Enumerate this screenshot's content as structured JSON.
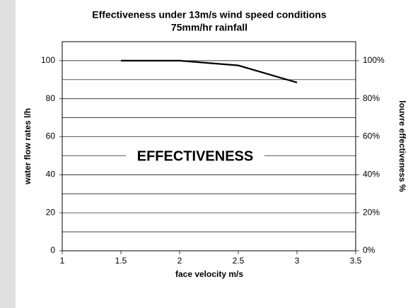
{
  "chart_data": {
    "type": "line",
    "title": "Effectiveness under 13m/s wind speed conditions",
    "subtitle": "75mm/hr rainfall",
    "x_label": "face velocity m/s",
    "y_label": "water flow rates l/h",
    "y2_label": "louvre effectiveness %",
    "annotation": "EFFECTIVENESS",
    "x": [
      1.5,
      2,
      2.5,
      3
    ],
    "series": [
      {
        "name": "effectiveness",
        "color": "#000000",
        "values": [
          100,
          100,
          97.5,
          88.5
        ]
      }
    ],
    "xlim": [
      1,
      3.5
    ],
    "xticks": [
      1,
      1.5,
      2,
      2.5,
      3,
      3.5
    ],
    "ylim": [
      0,
      110
    ],
    "yticks": [
      0,
      20,
      40,
      60,
      80,
      100
    ],
    "y_minor_ticks": [
      10,
      30,
      50,
      70,
      90
    ],
    "y2lim": [
      0,
      110
    ],
    "y2ticks": [
      {
        "value": 0,
        "label": "0%"
      },
      {
        "value": 20,
        "label": "20%"
      },
      {
        "value": 40,
        "label": "40%"
      },
      {
        "value": 60,
        "label": "60%"
      },
      {
        "value": 80,
        "label": "80%"
      },
      {
        "value": 100,
        "label": "100%"
      }
    ],
    "grid": true
  }
}
